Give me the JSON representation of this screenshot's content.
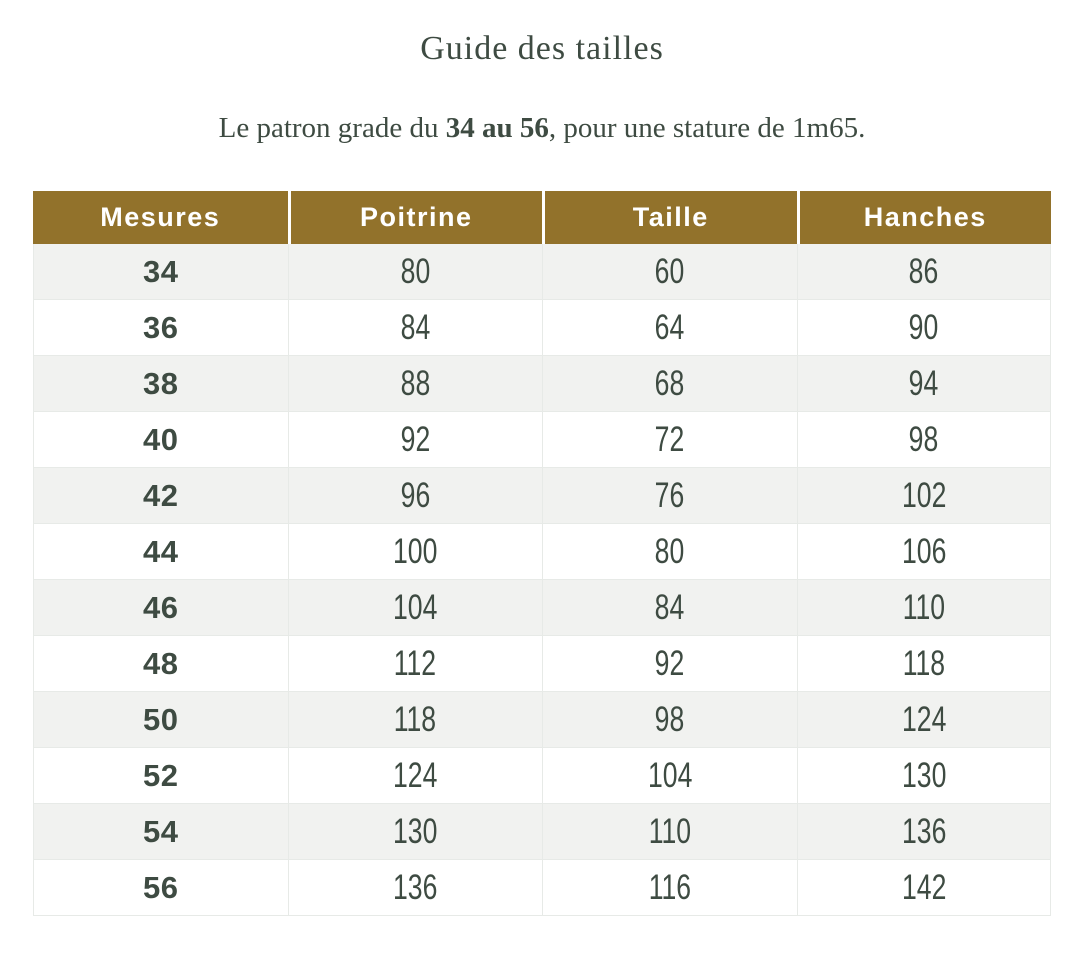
{
  "page": {
    "title": "Guide des tailles",
    "subtitle": {
      "prefix": "Le patron grade du ",
      "bold": "34 au 56",
      "suffix": ", pour une stature de 1m65."
    }
  },
  "colors": {
    "header_bg": "#92722B",
    "header_text": "#FFFFFF",
    "text": "#3E4B42",
    "row_alt": "#F1F2F0",
    "row": "#FFFFFF",
    "border": "#E7EAE7",
    "page_bg": "#FFFFFF"
  },
  "table": {
    "columns": [
      "Mesures",
      "Poitrine",
      "Taille",
      "Hanches"
    ],
    "rows": [
      {
        "size": "34",
        "poitrine": "80",
        "taille": "60",
        "hanches": "86"
      },
      {
        "size": "36",
        "poitrine": "84",
        "taille": "64",
        "hanches": "90"
      },
      {
        "size": "38",
        "poitrine": "88",
        "taille": "68",
        "hanches": "94"
      },
      {
        "size": "40",
        "poitrine": "92",
        "taille": "72",
        "hanches": "98"
      },
      {
        "size": "42",
        "poitrine": "96",
        "taille": "76",
        "hanches": "102"
      },
      {
        "size": "44",
        "poitrine": "100",
        "taille": "80",
        "hanches": "106"
      },
      {
        "size": "46",
        "poitrine": "104",
        "taille": "84",
        "hanches": "110"
      },
      {
        "size": "48",
        "poitrine": "112",
        "taille": "92",
        "hanches": "118"
      },
      {
        "size": "50",
        "poitrine": "118",
        "taille": "98",
        "hanches": "124"
      },
      {
        "size": "52",
        "poitrine": "124",
        "taille": "104",
        "hanches": "130"
      },
      {
        "size": "54",
        "poitrine": "130",
        "taille": "110",
        "hanches": "136"
      },
      {
        "size": "56",
        "poitrine": "136",
        "taille": "116",
        "hanches": "142"
      }
    ]
  }
}
